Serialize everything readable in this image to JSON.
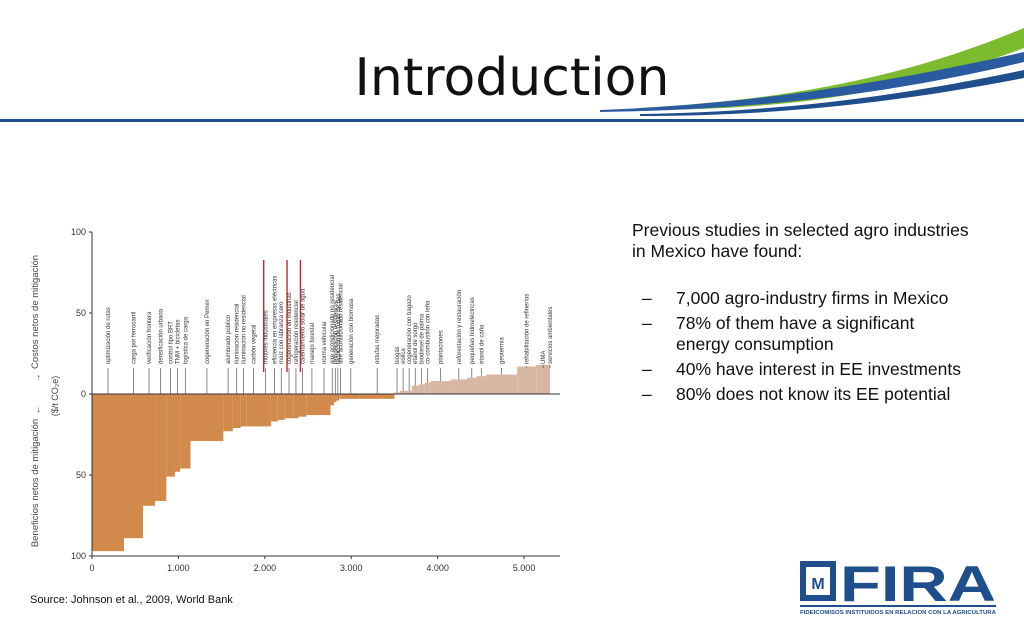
{
  "slide": {
    "title": "Introduction",
    "source": "Source: Johnson et al., 2009, World Bank",
    "lead": "Previous studies in selected agro industries in Mexico have found:",
    "bullets": [
      {
        "dash": "–",
        "text": "7,000 agro-industry firms in Mexico"
      },
      {
        "dash": "–",
        "text": "78% of them have a significant energy consumption"
      },
      {
        "dash": "–",
        "text": "40% have interest in EE investments"
      },
      {
        "dash": "–",
        "text": "80% does not know its EE potential"
      }
    ],
    "logo": {
      "name": "FIRA",
      "tagline": "FIDEICOMISOS INSTITUIDOS EN RELACION CON LA AGRICULTURA"
    }
  },
  "colors": {
    "accent_blue": "#1f4e8c",
    "accent_green": "#7dbb2e",
    "benefit_bar": "#d18a4b",
    "cost_bar": "#d7b7a3",
    "text": "#111111"
  },
  "chart_data": {
    "type": "bar",
    "ylabel_top": "Costos netos de mitigación",
    "ylabel_bottom": "Beneficios netos de mitigación",
    "yunit": "($/t CO₂e)",
    "ylim": [
      -100,
      100
    ],
    "yticks": [
      {
        "value": 100,
        "label": "100"
      },
      {
        "value": 50,
        "label": "50"
      },
      {
        "value": 0,
        "label": "0"
      },
      {
        "value": -50,
        "label": "50"
      },
      {
        "value": -100,
        "label": "100"
      }
    ],
    "xlim": [
      0,
      5300
    ],
    "xticks": [
      {
        "value": 0,
        "label": "0"
      },
      {
        "value": 1000,
        "label": "1.000"
      },
      {
        "value": 2000,
        "label": "2.000"
      },
      {
        "value": 3000,
        "label": "3.000"
      },
      {
        "value": 4000,
        "label": "4.000"
      },
      {
        "value": 5000,
        "label": "5.000"
      }
    ],
    "bars": [
      {
        "label": "optimización de rutas",
        "x0": 0,
        "x1": 370,
        "value": -97,
        "label_x": 185
      },
      {
        "label": "carga por ferrocarril",
        "x0": 370,
        "x1": 590,
        "value": -89,
        "label_x": 480
      },
      {
        "label": "verificación frontera",
        "x0": 590,
        "x1": 730,
        "value": -69,
        "label_x": 660
      },
      {
        "label": "densificación urbana",
        "x0": 730,
        "x1": 860,
        "value": -66,
        "label_x": 795
      },
      {
        "label": "control tipo BRT",
        "x0": 860,
        "x1": 960,
        "value": -51,
        "label_x": 910
      },
      {
        "label": "TNM + bicicletas",
        "x0": 960,
        "x1": 1020,
        "value": -48,
        "label_x": 990
      },
      {
        "label": "logística de carga",
        "x0": 1020,
        "x1": 1140,
        "value": -46,
        "label_x": 1080
      },
      {
        "label": "cogeneración en Pemex",
        "x0": 1140,
        "x1": 1520,
        "value": -29,
        "label_x": 1330
      },
      {
        "label": "alumbrado público",
        "x0": 1520,
        "x1": 1630,
        "value": -23,
        "label_x": 1575
      },
      {
        "label": "iluminación residencial",
        "x0": 1630,
        "x1": 1720,
        "value": -21,
        "label_x": 1675
      },
      {
        "label": "iluminación no residencial",
        "x0": 1720,
        "x1": 1790,
        "value": -20,
        "label_x": 1755
      },
      {
        "label": "carbón vegetal",
        "x0": 1790,
        "x1": 1950,
        "value": -20,
        "label_x": 1870
      },
      {
        "label": "motores industriales",
        "x0": 1950,
        "x1": 2070,
        "value": -20,
        "label_x": 2010,
        "highlight": true
      },
      {
        "label": "eficiencia en empresas eléctricas",
        "x0": 2070,
        "x1": 2150,
        "value": -17,
        "label_x": 2110
      },
      {
        "label": "maíz con labranza cero",
        "x0": 2150,
        "x1": 2230,
        "value": -16,
        "label_x": 2190
      },
      {
        "label": "cogeneración en industrias",
        "x0": 2230,
        "x1": 2330,
        "value": -15,
        "label_x": 2280,
        "highlight": true
      },
      {
        "label": "refrigeración residencial",
        "x0": 2330,
        "x1": 2390,
        "value": -15,
        "label_x": 2360
      },
      {
        "label": "calentamiento solar de agua",
        "x0": 2390,
        "x1": 2480,
        "value": -14,
        "label_x": 2435,
        "highlight": true
      },
      {
        "label": "manejo forestal",
        "x0": 2480,
        "x1": 2610,
        "value": -13,
        "label_x": 2545
      },
      {
        "label": "norma vehicular",
        "x0": 2610,
        "x1": 2760,
        "value": -13,
        "label_x": 2685
      },
      {
        "label": "aire acondicionado no residencial",
        "x0": 2760,
        "x1": 2800,
        "value": -7,
        "label_x": 2780
      },
      {
        "label": "refrigeración residencial",
        "x0": 2800,
        "x1": 2830,
        "value": -5,
        "label_x": 2815
      },
      {
        "label": "reducción de fugas de gas",
        "x0": 2830,
        "x1": 2860,
        "value": -4,
        "label_x": 2845
      },
      {
        "label": "aire acondicionado residencial",
        "x0": 2860,
        "x1": 2890,
        "value": -3,
        "label_x": 2875
      },
      {
        "label": "generación con biomasa",
        "x0": 2890,
        "x1": 3100,
        "value": -3,
        "label_x": 2995
      },
      {
        "label": "estufas mejoradas",
        "x0": 3100,
        "x1": 3500,
        "value": -3,
        "label_x": 3300
      },
      {
        "label": "biogás",
        "x0": 3500,
        "x1": 3560,
        "value": 1,
        "label_x": 3530
      },
      {
        "label": "eólica",
        "x0": 3560,
        "x1": 3640,
        "value": 2,
        "label_x": 3600
      },
      {
        "label": "cogeneración con bagazo",
        "x0": 3640,
        "x1": 3700,
        "value": 2,
        "label_x": 3670
      },
      {
        "label": "etanol de sorgo",
        "x0": 3700,
        "x1": 3780,
        "value": 5,
        "label_x": 3740
      },
      {
        "label": "biodiesel de palma",
        "x0": 3780,
        "x1": 3850,
        "value": 6,
        "label_x": 3815
      },
      {
        "label": "co-combustión con leña",
        "x0": 3850,
        "x1": 3920,
        "value": 7,
        "label_x": 3885
      },
      {
        "label": "plantaciones",
        "x0": 3920,
        "x1": 4150,
        "value": 8,
        "label_x": 4035
      },
      {
        "label": "reforestación y restauración",
        "x0": 4150,
        "x1": 4340,
        "value": 9,
        "label_x": 4245
      },
      {
        "label": "pequeñas hidroeléctricas",
        "x0": 4340,
        "x1": 4450,
        "value": 10,
        "label_x": 4395
      },
      {
        "label": "etanol de caña",
        "x0": 4450,
        "x1": 4560,
        "value": 11,
        "label_x": 4505
      },
      {
        "label": "geotermia",
        "x0": 4560,
        "x1": 4920,
        "value": 12,
        "label_x": 4740
      },
      {
        "label": "rehabilitación de refinerías",
        "x0": 4920,
        "x1": 5140,
        "value": 17,
        "label_x": 5030
      },
      {
        "label": "UMA",
        "x0": 5140,
        "x1": 5300,
        "value": 18,
        "label_x": 5220
      },
      {
        "label": "servicios ambientales",
        "x0": 5300,
        "x1": 5300,
        "value": 18,
        "label_x": 5300
      }
    ]
  }
}
